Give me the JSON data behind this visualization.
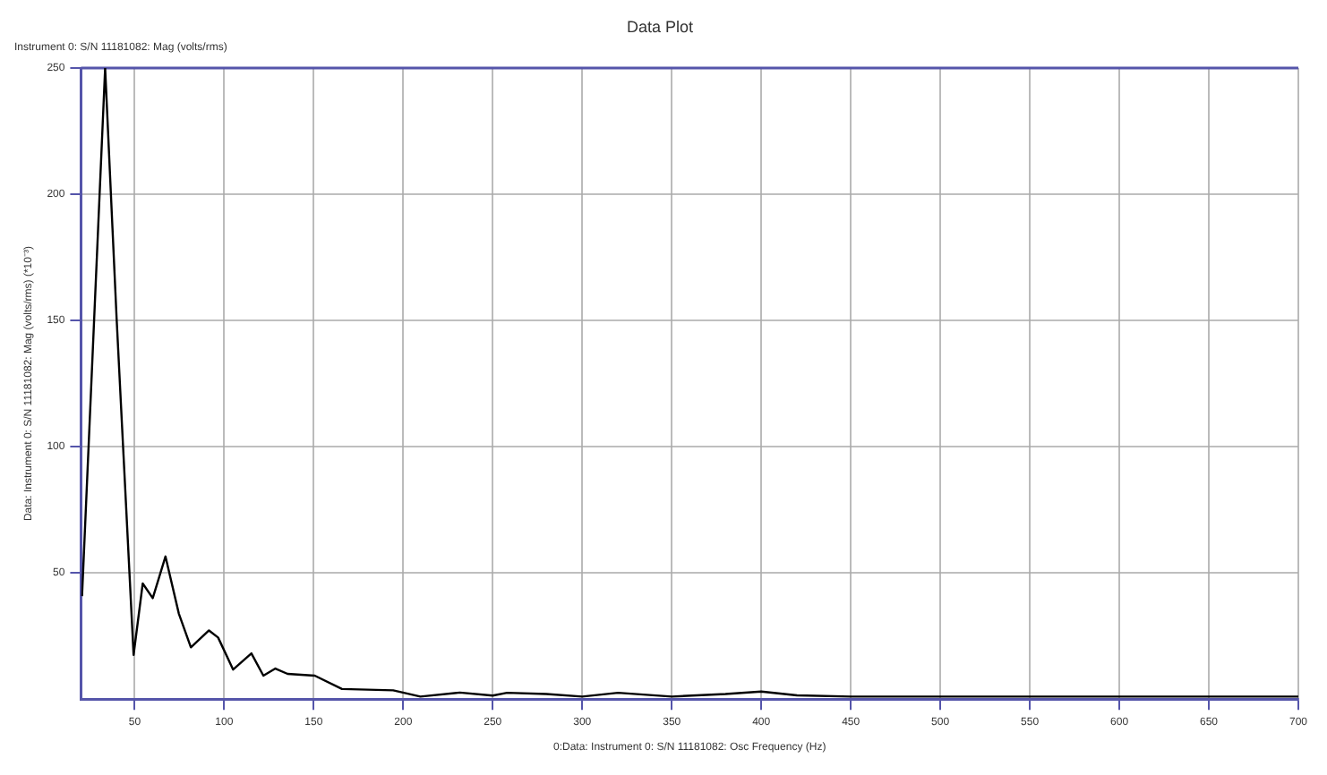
{
  "chart_data": {
    "type": "line",
    "title": "Data Plot",
    "subtitle": "Instrument 0: S/N 11181082: Mag (volts/rms)",
    "xlabel": "0:Data: Instrument 0: S/N 11181082: Osc Frequency (Hz)",
    "ylabel": "Data: Instrument 0: S/N 11181082: Mag (volts/rms) (*10⁻³)",
    "x": [
      20.6,
      33.5,
      39.9,
      49.4,
      54.5,
      60.1,
      67.2,
      74.7,
      81.4,
      91.5,
      96.6,
      105,
      115.2,
      121.9,
      128.6,
      135.4,
      150.6,
      165.8,
      194.4,
      209.6,
      231.6,
      250,
      258,
      280,
      300,
      320,
      350,
      380,
      400,
      420,
      450,
      500,
      550,
      600,
      650,
      700
    ],
    "series": [
      {
        "color": "#000000",
        "values": [
          40.8,
          250,
          151,
          17.5,
          45.8,
          40,
          56.5,
          33.8,
          20.5,
          27.2,
          24.4,
          11.7,
          18.1,
          9.3,
          12.1,
          10,
          9.3,
          4,
          3.5,
          1,
          2.6,
          1.4,
          2.5,
          2,
          1,
          2.5,
          1,
          2,
          3,
          1.5,
          1,
          1,
          1,
          1,
          1,
          1
        ]
      }
    ],
    "xlim": [
      20,
      700
    ],
    "xticks": [
      50,
      100,
      150,
      200,
      250,
      300,
      350,
      400,
      450,
      500,
      550,
      600,
      650,
      700
    ],
    "ylim": [
      0,
      250
    ],
    "yticks": [
      50,
      100,
      150,
      200,
      250
    ],
    "grid": true,
    "legend": false,
    "marker": "none",
    "line_style": "solid"
  }
}
